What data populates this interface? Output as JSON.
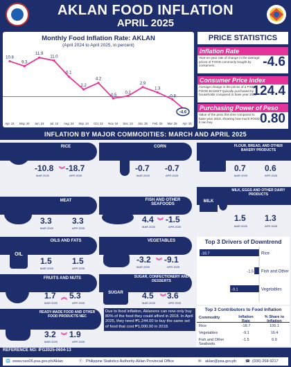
{
  "header": {
    "title": "AKLAN FOOD INFLATION",
    "subtitle": "APRIL 2025"
  },
  "chart": {
    "title": "Monthly Food Inflation Rate: AKLAN",
    "subtitle": "(April 2024 to April 2025, in percent)",
    "line_color": "#e6339a"
  },
  "chart_data": {
    "type": "line",
    "categories": [
      "Apr. 24",
      "May. 24",
      "Jun. 24",
      "Jul. 24",
      "Aug. 24",
      "Sep. 24",
      "Oct. 24",
      "Nov. 24",
      "Dec. 24",
      "Jan. 25",
      "Feb. 25",
      "Mar. 25",
      "Apr. 25"
    ],
    "values": [
      10.8,
      9.3,
      11.9,
      11.0,
      6.1,
      2.2,
      4.2,
      -0.5,
      0.2,
      2.9,
      1.3,
      -0.8,
      -4.6
    ],
    "labels": [
      "10.8",
      "9.3",
      "11.9",
      "11.0",
      "6.1",
      "2.2",
      "4.2",
      "-0.5",
      "0.2",
      "2.9",
      "1.3",
      "-0.8",
      "-4.6"
    ],
    "ylim": [
      -6,
      13
    ]
  },
  "price_stats": {
    "heading": "PRICE STATISTICS",
    "inflation": {
      "label": "Inflation Rate",
      "desc": "Year-on-year rate of change in the average prices of FOOD commonly bought by consumers.",
      "value": "-4.6"
    },
    "cpi": {
      "label": "Consumer Price Index",
      "desc": "Average change in the prices of a FIXED FOOD BASKET typically purchased by households compared to base year 2018",
      "value": "124.4"
    },
    "ppp": {
      "label": "Purchasing Power of Peso",
      "desc": "Value of the peso this time compared to base year 2018, showing how much FOOD it can buy",
      "value": "0.80"
    }
  },
  "section_title": "INFLATION BY MAJOR COMMODITIES: MARCH AND APRIL 2025",
  "commodities": {
    "rice": {
      "name": "RICE",
      "mar": "-10.8",
      "apr": "-18.7",
      "mar_label": "MAR 2025",
      "apr_label": "APR 2025"
    },
    "corn": {
      "name": "CORN",
      "mar": "-0.7",
      "apr": "-0.7",
      "mar_label": "MAR 2025",
      "apr_label": "APR 2025"
    },
    "flour": {
      "name": "FLOUR, BREAD, AND OTHER BAKERY PRODUCTS",
      "mar": "0.7",
      "apr": "0.6",
      "mar_label": "MAR 2025",
      "apr_label": "APR 2025"
    },
    "meat": {
      "name": "MEAT",
      "mar": "3.3",
      "apr": "3.3",
      "mar_label": "MAR 2025",
      "apr_label": "APR 2025"
    },
    "fish": {
      "name": "FISH AND OTHER SEAFOODS",
      "mar": "4.4",
      "apr": "-1.5",
      "mar_label": "MAR 2025",
      "apr_label": "APR 2025"
    },
    "milk": {
      "name": "MILK, EGGS AND OTHER DAIRY PRODUCTS",
      "mar": "1.5",
      "apr": "1.3",
      "mar_label": "MAR 2025",
      "apr_label": "APR 2025"
    },
    "oils": {
      "name": "OILS AND FATS",
      "mar": "1.5",
      "apr": "1.5",
      "mar_label": "MAR 2025",
      "apr_label": "APR 2025"
    },
    "veg": {
      "name": "VEGETABLES",
      "mar": "-3.2",
      "apr": "-9.1",
      "mar_label": "MAR 2025",
      "apr_label": "APR 2025"
    },
    "fruits": {
      "name": "FRUITS AND NUTS",
      "mar": "1.7",
      "apr": "5.3",
      "mar_label": "MAR 2025",
      "apr_label": "APR 2025"
    },
    "sugar": {
      "name": "SUGAR, CONFECTIONERY AND DESSERTS",
      "mar": "4.5",
      "apr": "3.6",
      "mar_label": "MAR 2025",
      "apr_label": "APR 2025"
    },
    "ready": {
      "name": "READY-MADE FOOD AND OTHER FOOD PRODUCTS NEC",
      "mar": "3.2",
      "apr": "1.9",
      "mar_label": "MAR 2025",
      "apr_label": "APR 2025"
    }
  },
  "icon_text": {
    "milk": "MILK",
    "oil": "OIL",
    "sugar": "SUGAR"
  },
  "drivers": {
    "title": "Top 3 Drivers of Downtrend",
    "items": [
      {
        "label": "Rice",
        "value": "-18.7",
        "num": -18.7
      },
      {
        "label": "Fish and Other Seafoods",
        "value": "-1.5",
        "num": -1.5
      },
      {
        "label": "Vegetables",
        "value": "-9.1",
        "num": -9.1
      }
    ]
  },
  "contributors": {
    "title": "Top 3 Contributors to Food Inflation",
    "headers": [
      "Commodity",
      "Inflation Rate",
      "% Share to Inflation"
    ],
    "rows": [
      [
        "Rice",
        "-18.7",
        "105.1"
      ],
      [
        "Vegetables",
        "-9.1",
        "16.4"
      ],
      [
        "Fish and Other Seafoods",
        "-1.5",
        "6.0"
      ]
    ]
  },
  "note": "Due to food inflation, Aklanons can now only buy 80% of the food they could afford in 2018. In April 2025, they need ₱1,244.00 to buy the same set of food that cost ₱1,000.00 in 2018.",
  "footer": {
    "ref": "REFERENCE NO: IFG2025-0604-13",
    "site": "www.rsso06.psa.gov.ph/Aklan",
    "fb": "Philippine Statistics Authority-Aklan Provincial Office",
    "email": "aklan@psa.gov.ph",
    "phone": "(036) 268-9217"
  }
}
